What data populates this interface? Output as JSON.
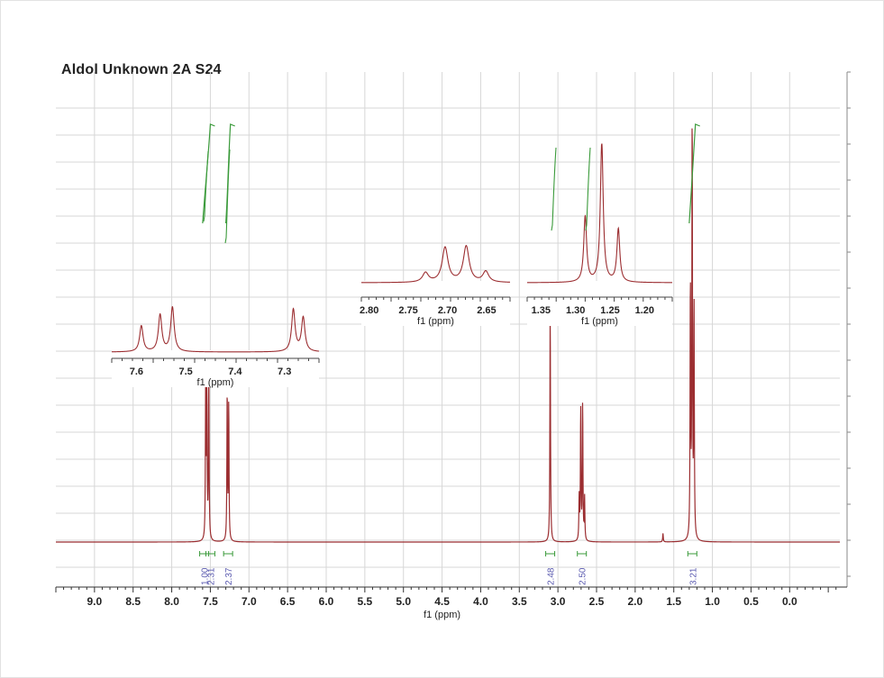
{
  "title": "Aldol Unknown 2A S24",
  "colors": {
    "spectrum": "#9b2d30",
    "integral": "#3a9a3a",
    "integral_label": "#5b5bb0",
    "grid": "#d7d7d7",
    "axis": "#333333",
    "panel_border": "#444444"
  },
  "chart_data": [
    {
      "type": "line",
      "name": "main-spectrum",
      "xlabel": "f1 (ppm)",
      "xlim": [
        9.5,
        -0.65
      ],
      "x_reversed": true,
      "grid": true,
      "x_ticks": [
        "9.0",
        "8.5",
        "8.0",
        "7.5",
        "7.0",
        "6.5",
        "6.0",
        "5.5",
        "5.0",
        "4.5",
        "4.0",
        "3.5",
        "3.0",
        "2.5",
        "2.0",
        "1.5",
        "1.0",
        "0.5",
        "0.0"
      ],
      "peaks": [
        {
          "ppm": 7.56,
          "height": 0.39
        },
        {
          "ppm": 7.545,
          "height": 0.33
        },
        {
          "ppm": 7.52,
          "height": 0.41
        },
        {
          "ppm": 7.282,
          "height": 0.35
        },
        {
          "ppm": 7.262,
          "height": 0.32
        },
        {
          "ppm": 3.1,
          "height": 0.55
        },
        {
          "ppm": 2.725,
          "height": 0.1
        },
        {
          "ppm": 2.705,
          "height": 0.31
        },
        {
          "ppm": 2.68,
          "height": 0.32
        },
        {
          "ppm": 2.655,
          "height": 0.1
        },
        {
          "ppm": 1.64,
          "height": 0.02
        },
        {
          "ppm": 1.285,
          "height": 0.6
        },
        {
          "ppm": 1.262,
          "height": 1.0
        },
        {
          "ppm": 1.238,
          "height": 0.55
        }
      ],
      "integrals": [
        {
          "ppm": 7.58,
          "label": "1.00"
        },
        {
          "ppm": 7.5,
          "label": "2.31"
        },
        {
          "ppm": 7.27,
          "label": "2.37"
        },
        {
          "ppm": 3.1,
          "label": "2.48"
        },
        {
          "ppm": 2.69,
          "label": "2.50"
        },
        {
          "ppm": 1.26,
          "label": "3.21"
        }
      ]
    },
    {
      "type": "line",
      "name": "inset-aromatic",
      "xlabel": "f1 (ppm)",
      "xlim": [
        7.65,
        7.23
      ],
      "x_ticks": [
        "7.6",
        "7.5",
        "7.4",
        "7.3"
      ],
      "peaks": [
        {
          "ppm": 7.59,
          "height": 0.48
        },
        {
          "ppm": 7.552,
          "height": 0.68
        },
        {
          "ppm": 7.527,
          "height": 0.82
        },
        {
          "ppm": 7.282,
          "height": 0.78
        },
        {
          "ppm": 7.262,
          "height": 0.63
        }
      ]
    },
    {
      "type": "line",
      "name": "inset-quartet",
      "xlabel": "f1 (ppm)",
      "xlim": [
        2.81,
        2.62
      ],
      "x_ticks": [
        "2.80",
        "2.75",
        "2.70",
        "2.65"
      ],
      "peaks": [
        {
          "ppm": 2.728,
          "height": 0.15
        },
        {
          "ppm": 2.703,
          "height": 0.55
        },
        {
          "ppm": 2.676,
          "height": 0.57
        },
        {
          "ppm": 2.651,
          "height": 0.17
        }
      ]
    },
    {
      "type": "line",
      "name": "inset-triplet",
      "xlabel": "f1 (ppm)",
      "xlim": [
        1.37,
        1.16
      ],
      "x_ticks": [
        "1.35",
        "1.30",
        "1.25",
        "1.20"
      ],
      "peaks": [
        {
          "ppm": 1.286,
          "height": 0.47
        },
        {
          "ppm": 1.262,
          "height": 1.0
        },
        {
          "ppm": 1.238,
          "height": 0.38
        }
      ]
    }
  ]
}
